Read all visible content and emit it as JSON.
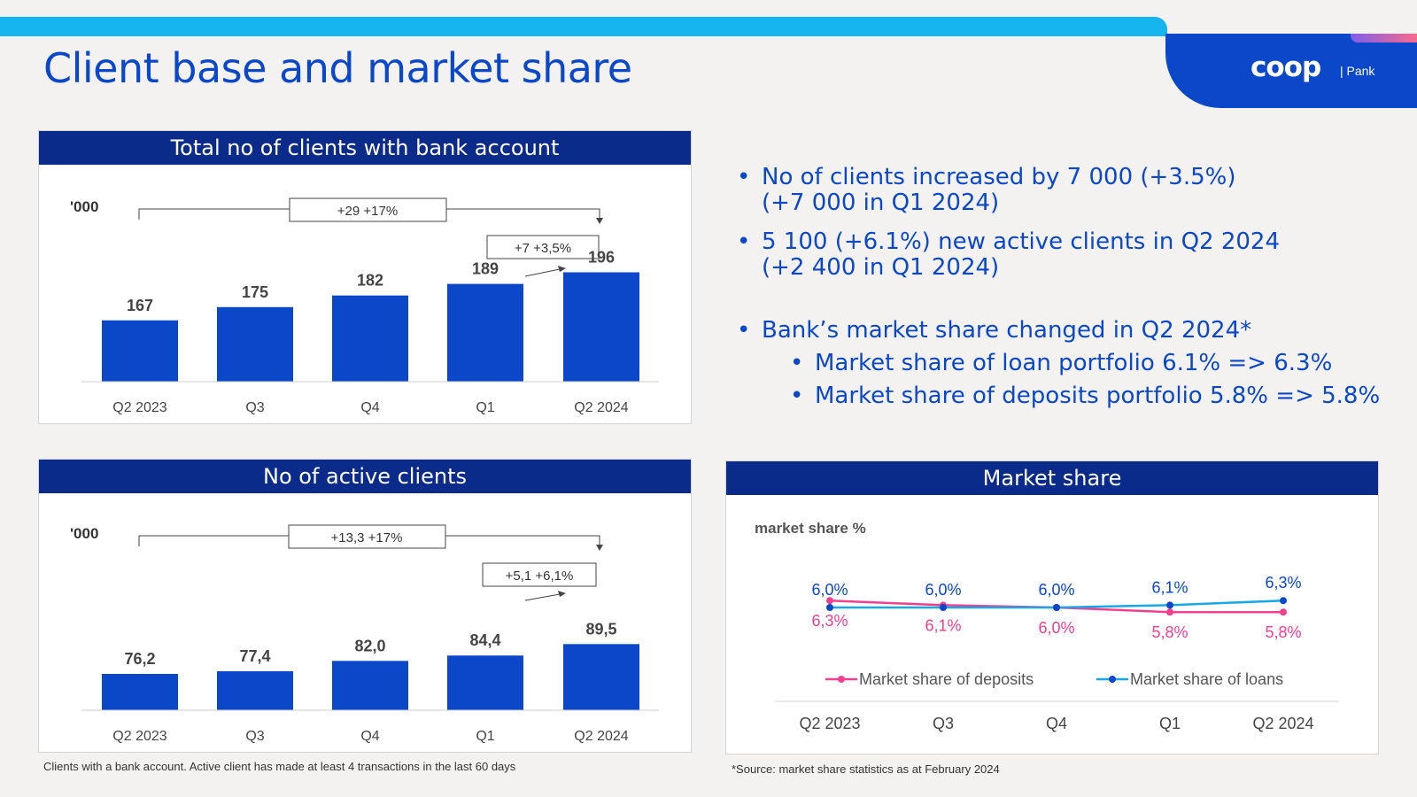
{
  "header": {
    "title": "Client base and market share",
    "logo_text": "coop",
    "logo_sub": "| Pank"
  },
  "summary": [
    {
      "level": 1,
      "text": "No of clients increased by 7 000 (+3.5%)"
    },
    {
      "level": 1,
      "text": "(+7 000 in Q1 2024)",
      "continuation": true
    },
    {
      "level": 1,
      "text": "5 100 (+6.1%) new active clients in Q2 2024"
    },
    {
      "level": 1,
      "text": "(+2 400 in Q1 2024)",
      "continuation": true
    },
    {
      "level": 1,
      "text": "Bank’s market share changed in Q2 2024*"
    },
    {
      "level": 2,
      "text": "Market share of loan portfolio 6.1% => 6.3%"
    },
    {
      "level": 2,
      "text": "Market share of deposits portfolio 5.8% => 5.8%"
    }
  ],
  "panels": {
    "clients": {
      "title": "Total no of clients with bank account"
    },
    "active": {
      "title": "No of active clients"
    },
    "share": {
      "title": "Market share"
    }
  },
  "footnotes": {
    "left": "Clients with a bank account. Active client has made at least 4 transactions in the last 60 days",
    "right": "*Source: market share statistics as at February 2024"
  },
  "colors": {
    "brand_blue": "#0a47c9",
    "navy": "#0b2b8a",
    "cyan": "#17b5f0",
    "deposits": "#f0408e",
    "loans": "#1aa7e8"
  },
  "chart_data": [
    {
      "type": "bar",
      "ylabel": "'000",
      "categories": [
        "Q2 2023",
        "Q3",
        "Q4",
        "Q1",
        "Q2 2024"
      ],
      "values": [
        167,
        175,
        182,
        189,
        196
      ],
      "labels": [
        "167",
        "175",
        "182",
        "189",
        "196"
      ],
      "ylim": [
        130,
        200
      ],
      "annotations": {
        "total_change": "+29 +17%",
        "quarter_change": "+7 +3,5%"
      }
    },
    {
      "type": "bar",
      "ylabel": "'000",
      "categories": [
        "Q2 2023",
        "Q3",
        "Q4",
        "Q1",
        "Q2 2024"
      ],
      "values": [
        76.2,
        77.4,
        82.0,
        84.4,
        89.5
      ],
      "labels": [
        "76,2",
        "77,4",
        "82,0",
        "84,4",
        "89,5"
      ],
      "ylim": [
        60,
        92
      ],
      "annotations": {
        "total_change": "+13,3 +17%",
        "quarter_change": "+5,1 +6,1%"
      }
    },
    {
      "type": "line",
      "ylabel": "market share %",
      "categories": [
        "Q2 2023",
        "Q3",
        "Q4",
        "Q1",
        "Q2 2024"
      ],
      "ylim": [
        5,
        7
      ],
      "series": [
        {
          "name": "Market share of deposits",
          "color": "#f0408e",
          "values": [
            6.3,
            6.1,
            6.0,
            5.8,
            5.8
          ],
          "labels": [
            "6,3%",
            "6,1%",
            "6,0%",
            "5,8%",
            "5,8%"
          ]
        },
        {
          "name": "Market share of loans",
          "color": "#1aa7e8",
          "values": [
            6.0,
            6.0,
            6.0,
            6.1,
            6.3
          ],
          "labels": [
            "6,0%",
            "6,0%",
            "6,0%",
            "6,1%",
            "6,3%"
          ]
        }
      ]
    }
  ]
}
